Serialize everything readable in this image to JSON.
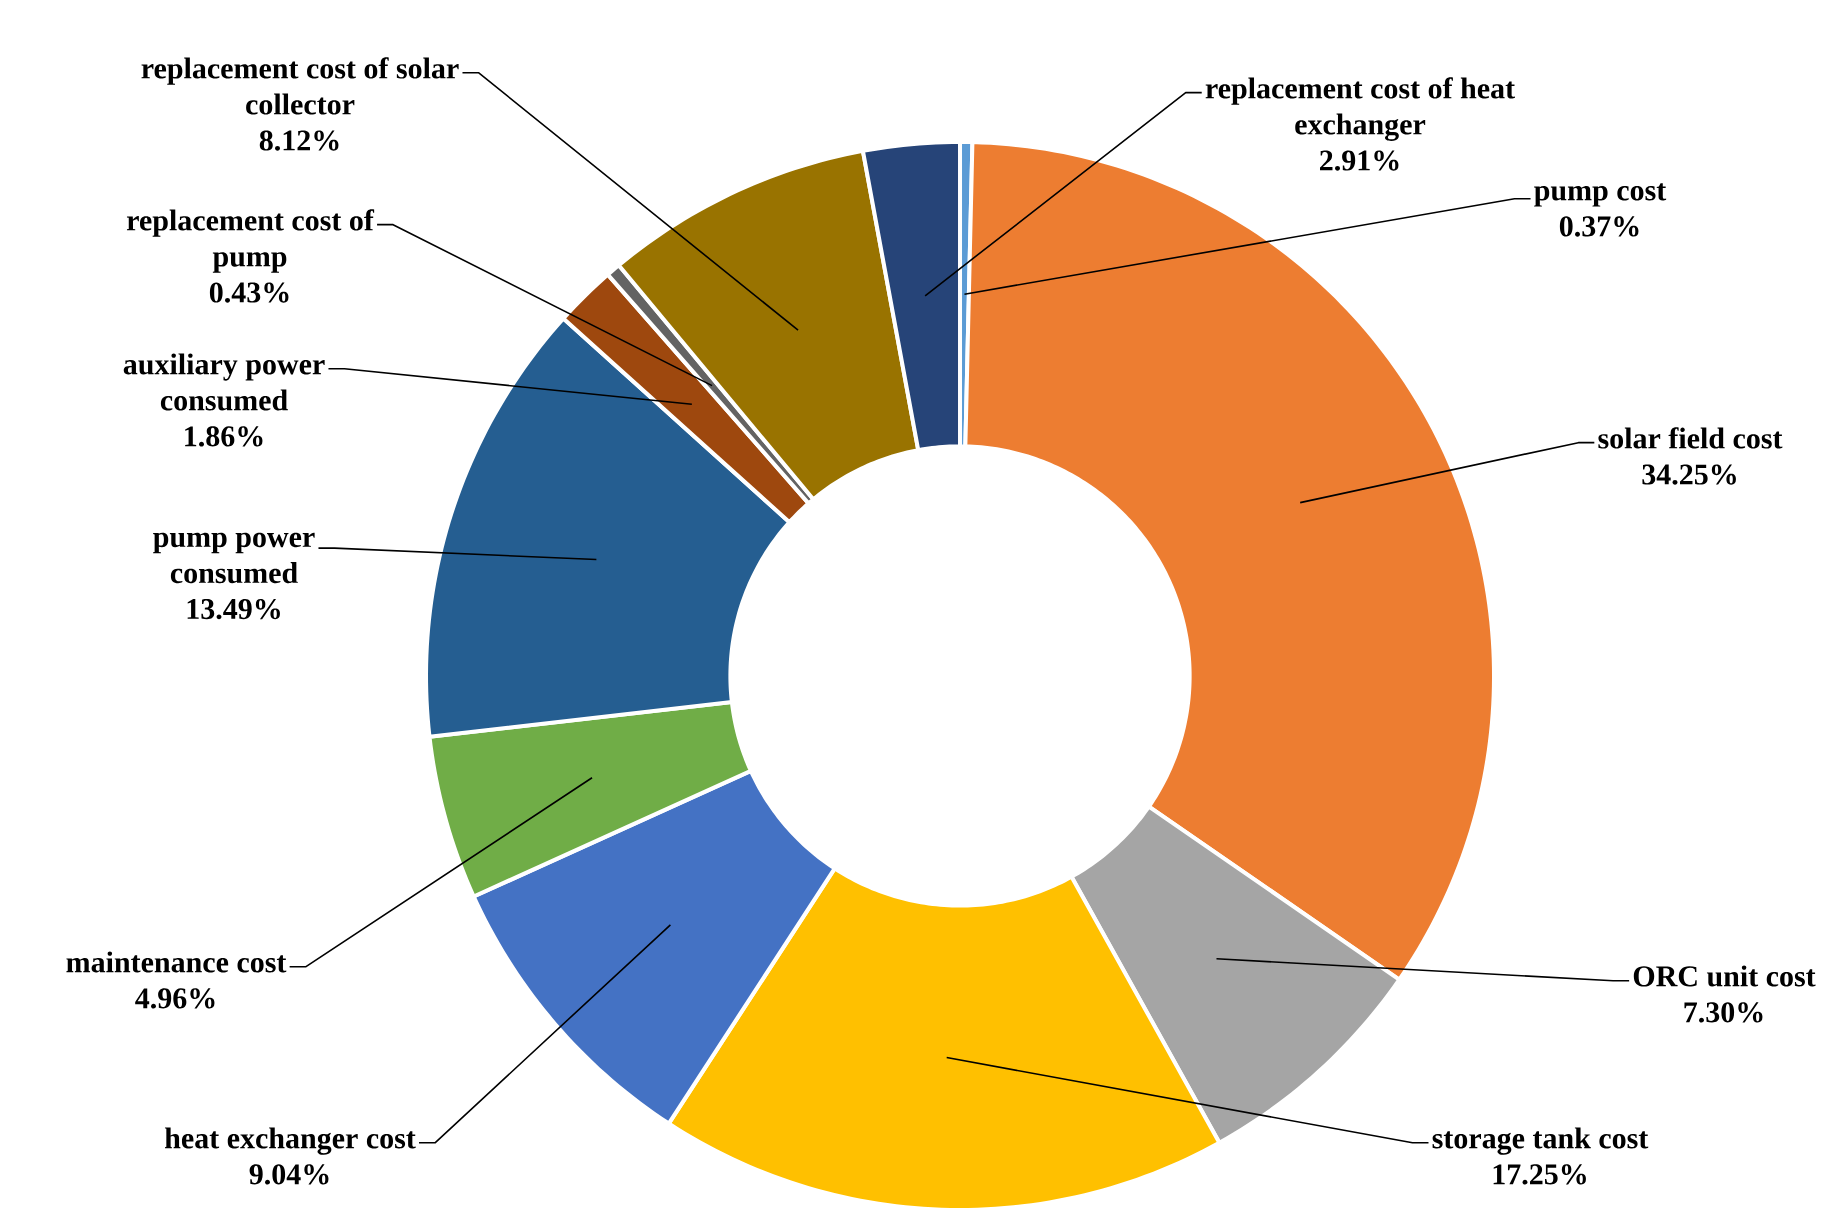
{
  "chart_data": {
    "type": "donut",
    "categories": [
      "pump cost",
      "solar field cost",
      "ORC unit cost",
      "storage tank cost",
      "heat exchanger cost",
      "maintenance cost",
      "pump power consumed",
      "auxiliary power consumed",
      "replacement cost of pump",
      "replacement cost of solar collector",
      "replacement cost of heat exchanger"
    ],
    "values": [
      0.37,
      34.25,
      7.3,
      17.25,
      9.04,
      4.96,
      13.49,
      1.86,
      0.43,
      8.12,
      2.91
    ],
    "value_labels": [
      "0.37%",
      "34.25%",
      "7.30%",
      "17.25%",
      "9.04%",
      "4.96%",
      "13.49%",
      "1.86%",
      "0.43%",
      "8.12%",
      "2.91%"
    ],
    "colors": [
      "#5b9bd5",
      "#ed7d31",
      "#a5a5a5",
      "#ffc000",
      "#4472c4",
      "#70ad47",
      "#255e91",
      "#9e480e",
      "#636363",
      "#997300",
      "#264478"
    ]
  }
}
